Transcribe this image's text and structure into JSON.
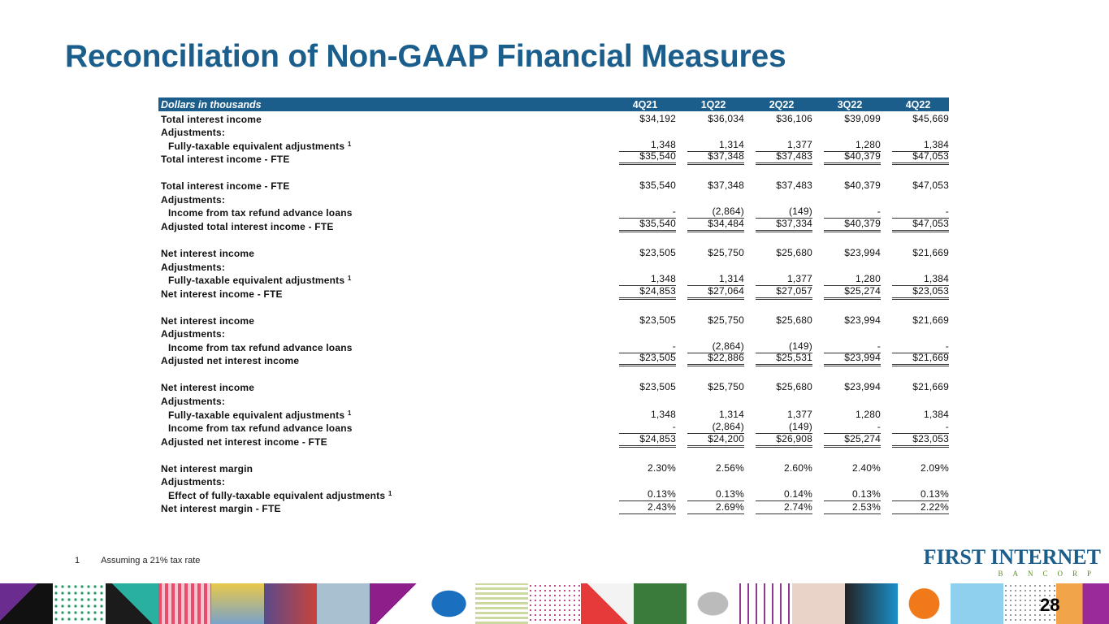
{
  "title": "Reconciliation of Non-GAAP Financial Measures",
  "table": {
    "header_label": "Dollars in thousands",
    "columns": [
      "4Q21",
      "1Q22",
      "2Q22",
      "3Q22",
      "4Q22"
    ],
    "rows": [
      {
        "label": "Total interest income",
        "values": [
          "$34,192",
          "$36,034",
          "$36,106",
          "$39,099",
          "$45,669"
        ]
      },
      {
        "label": "Adjustments:",
        "values": []
      },
      {
        "label": "Fully-taxable equivalent adjustments",
        "sup": "1",
        "indent": true,
        "style": "sub",
        "values": [
          "1,348",
          "1,314",
          "1,377",
          "1,280",
          "1,384"
        ]
      },
      {
        "label": "Total interest income - FTE",
        "style": "total",
        "values": [
          "$35,540",
          "$37,348",
          "$37,483",
          "$40,379",
          "$47,053"
        ]
      },
      {
        "label": "",
        "values": []
      },
      {
        "label": "Total interest income - FTE",
        "values": [
          "$35,540",
          "$37,348",
          "$37,483",
          "$40,379",
          "$47,053"
        ]
      },
      {
        "label": "Adjustments:",
        "values": []
      },
      {
        "label": "Income from tax refund advance loans",
        "indent": true,
        "style": "sub",
        "values": [
          "-",
          "(2,864)",
          "(149)",
          "-",
          "-"
        ]
      },
      {
        "label": "Adjusted total interest income - FTE",
        "style": "total",
        "values": [
          "$35,540",
          "$34,484",
          "$37,334",
          "$40,379",
          "$47,053"
        ]
      },
      {
        "label": "",
        "values": []
      },
      {
        "label": "Net interest income",
        "values": [
          "$23,505",
          "$25,750",
          "$25,680",
          "$23,994",
          "$21,669"
        ]
      },
      {
        "label": "Adjustments:",
        "values": []
      },
      {
        "label": "Fully-taxable equivalent adjustments",
        "sup": "1",
        "indent": true,
        "style": "sub",
        "values": [
          "1,348",
          "1,314",
          "1,377",
          "1,280",
          "1,384"
        ]
      },
      {
        "label": "Net interest income - FTE",
        "style": "total",
        "values": [
          "$24,853",
          "$27,064",
          "$27,057",
          "$25,274",
          "$23,053"
        ]
      },
      {
        "label": "",
        "values": []
      },
      {
        "label": "Net interest income",
        "values": [
          "$23,505",
          "$25,750",
          "$25,680",
          "$23,994",
          "$21,669"
        ]
      },
      {
        "label": "Adjustments:",
        "values": []
      },
      {
        "label": "Income from tax refund advance loans",
        "indent": true,
        "style": "sub",
        "values": [
          "-",
          "(2,864)",
          "(149)",
          "-",
          "-"
        ]
      },
      {
        "label": "Adjusted net interest income",
        "style": "total",
        "values": [
          "$23,505",
          "$22,886",
          "$25,531",
          "$23,994",
          "$21,669"
        ]
      },
      {
        "label": "",
        "values": []
      },
      {
        "label": "Net interest income",
        "values": [
          "$23,505",
          "$25,750",
          "$25,680",
          "$23,994",
          "$21,669"
        ]
      },
      {
        "label": "Adjustments:",
        "values": []
      },
      {
        "label": "Fully-taxable equivalent adjustments",
        "sup": "1",
        "indent": true,
        "values": [
          "1,348",
          "1,314",
          "1,377",
          "1,280",
          "1,384"
        ]
      },
      {
        "label": "Income from tax refund advance loans",
        "indent": true,
        "style": "sub",
        "values": [
          "-",
          "(2,864)",
          "(149)",
          "-",
          "-"
        ]
      },
      {
        "label": "Adjusted net interest income - FTE",
        "style": "total",
        "values": [
          "$24,853",
          "$24,200",
          "$26,908",
          "$25,274",
          "$23,053"
        ]
      },
      {
        "label": "",
        "values": []
      },
      {
        "label": "Net interest margin",
        "values": [
          "2.30%",
          "2.56%",
          "2.60%",
          "2.40%",
          "2.09%"
        ]
      },
      {
        "label": "Adjustments:",
        "values": []
      },
      {
        "label": "Effect of fully-taxable equivalent adjustments",
        "sup": "1",
        "indent": true,
        "style": "sub",
        "values": [
          "0.13%",
          "0.13%",
          "0.14%",
          "0.13%",
          "0.13%"
        ]
      },
      {
        "label": "Net interest margin - FTE",
        "style": "sub",
        "values": [
          "2.43%",
          "2.69%",
          "2.74%",
          "2.53%",
          "2.22%"
        ]
      }
    ]
  },
  "footnote": {
    "number": "1",
    "text": "Assuming a 21% tax rate"
  },
  "logo": {
    "name": "FIRST INTERNET",
    "sub": "BANCORP"
  },
  "page_number": "28",
  "colors": {
    "brand_blue": "#1b5e8c",
    "brand_green": "#5b8c2f"
  }
}
